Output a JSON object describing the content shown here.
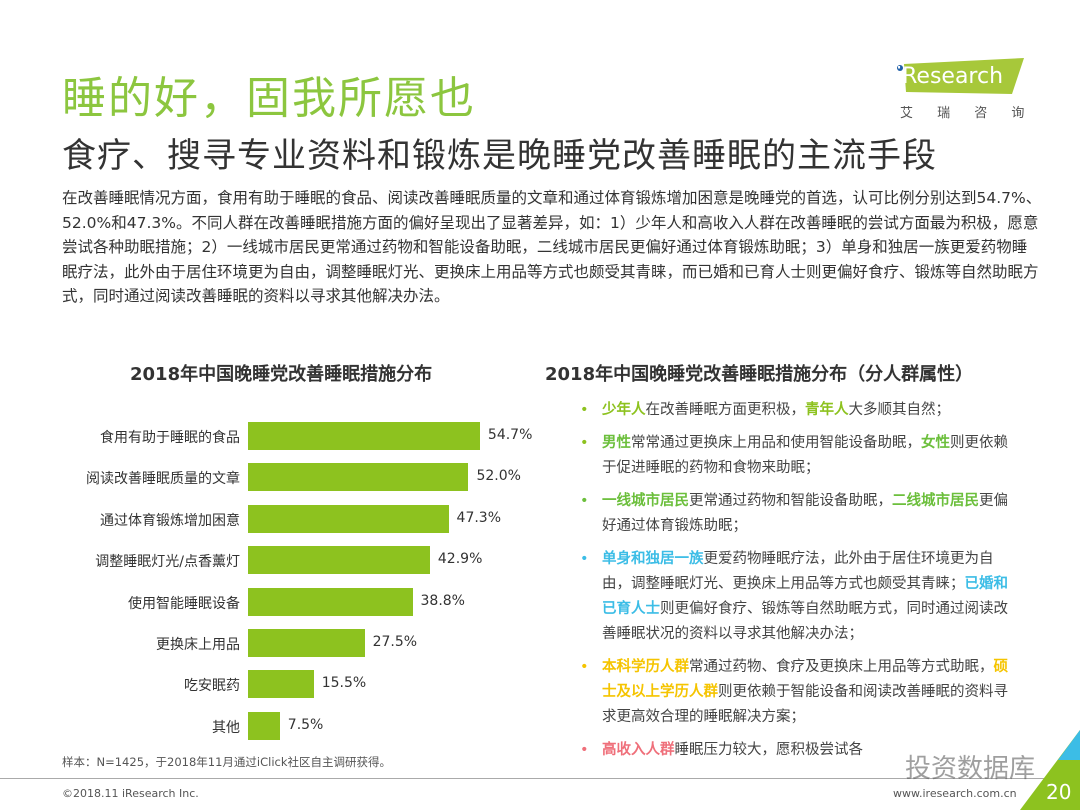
{
  "header": {
    "title": "睡的好，固我所愿也",
    "subtitle": "食疗、搜寻专业资料和锻炼是晚睡党改善睡眠的主流手段",
    "logo_text": "iResearch",
    "logo_cn": "艾 瑞 咨 询"
  },
  "intro": "在改善睡眠情况方面，食用有助于睡眠的食品、阅读改善睡眠质量的文章和通过体育锻炼增加困意是晚睡党的首选，认可比例分别达到54.7%、52.0%和47.3%。不同人群在改善睡眠措施方面的偏好呈现出了显著差异，如：1）少年人和高收入人群在改善睡眠的尝试方面最为积极，愿意尝试各种助眠措施；2）一线城市居民更常通过药物和智能设备助眠，二线城市居民更偏好通过体育锻炼助眠；3）单身和独居一族更爱药物睡眠疗法，此外由于居住环境更为自由，调整睡眠灯光、更换床上用品等方式也颇受其青睐，而已婚和已育人士则更偏好食疗、锻炼等自然助眠方式，同时通过阅读改善睡眠的资料以寻求其他解决办法。",
  "chart_data": {
    "type": "bar",
    "orientation": "horizontal",
    "title": "2018年中国晚睡党改善睡眠措施分布",
    "categories": [
      "食用有助于睡眠的食品",
      "阅读改善睡眠质量的文章",
      "通过体育锻炼增加困意",
      "调整睡眠灯光/点香薰灯",
      "使用智能睡眠设备",
      "更换床上用品",
      "吃安眠药",
      "其他"
    ],
    "values": [
      54.7,
      52.0,
      47.3,
      42.9,
      38.8,
      27.5,
      15.5,
      7.5
    ],
    "labels": [
      "54.7%",
      "52.0%",
      "47.3%",
      "42.9%",
      "38.8%",
      "27.5%",
      "15.5%",
      "7.5%"
    ],
    "unit": "%",
    "color": "#8dc21f",
    "grid": false
  },
  "right": {
    "title": "2018年中国晚睡党改善睡眠措施分布（分人群属性）",
    "bullets": [
      {
        "color": "#8dc21f",
        "parts": [
          [
            "g",
            "少年人"
          ],
          [
            "",
            "在改善睡眠方面更积极，"
          ],
          [
            "g",
            "青年人"
          ],
          [
            "",
            "大多顺其自然；"
          ]
        ]
      },
      {
        "color": "#8dc21f",
        "parts": [
          [
            "g2",
            "男性"
          ],
          [
            "",
            "常常通过更换床上用品和使用智能设备助眠，"
          ],
          [
            "g2",
            "女性"
          ],
          [
            "",
            "则更依赖于促进睡眠的药物和食物来助眠；"
          ]
        ]
      },
      {
        "color": "#6cbf3c",
        "parts": [
          [
            "g2",
            "一线城市居民"
          ],
          [
            "",
            "更常通过药物和智能设备助眠，"
          ],
          [
            "g2",
            "二线城市居民"
          ],
          [
            "",
            "更偏好通过体育锻炼助眠；"
          ]
        ]
      },
      {
        "color": "#3cbde6",
        "parts": [
          [
            "c",
            "单身和独居一族"
          ],
          [
            "",
            "更爱药物睡眠疗法，此外由于居住环境更为自由，调整睡眠灯光、更换床上用品等方式也颇受其青睐；"
          ],
          [
            "c",
            "已婚和已育人士"
          ],
          [
            "",
            "则更偏好食疗、锻炼等自然助眠方式，同时通过阅读改善睡眠状况的资料以寻求其他解决办法；"
          ]
        ]
      },
      {
        "color": "#f5c400",
        "parts": [
          [
            "y",
            "本科学历人群"
          ],
          [
            "",
            "常通过药物、食疗及更换床上用品等方式助眠，"
          ],
          [
            "y",
            "硕士及以上学历人群"
          ],
          [
            "",
            "则更依赖于智能设备和阅读改善睡眠的资料寻求更高效合理的睡眠解决方案；"
          ]
        ]
      },
      {
        "color": "#ef6f7a",
        "parts": [
          [
            "r",
            "高收入人群"
          ],
          [
            "",
            "睡眠压力较大，愿积极尝试各"
          ]
        ]
      }
    ]
  },
  "footer": {
    "note": "样本：N=1425，于2018年11月通过iClick社区自主调研获得。",
    "copyright": "©2018.11 iResearch Inc.",
    "url": "www.iresearch.com.cn",
    "page": "20",
    "watermark": "投资数据库"
  },
  "colors": {
    "accent": "#8cc63f",
    "bar": "#8dc21f"
  }
}
